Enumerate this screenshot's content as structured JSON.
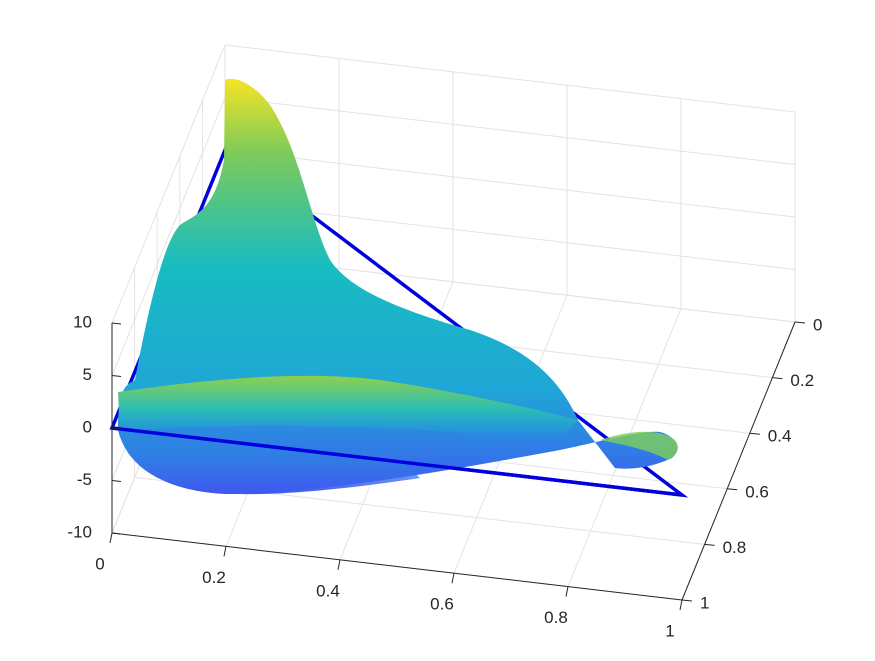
{
  "chart_data": {
    "type": "surface3d",
    "xlim": [
      0,
      1
    ],
    "xticks": [
      0,
      0.2,
      0.4,
      0.6,
      0.8,
      1
    ],
    "ylim": [
      0,
      1
    ],
    "yticks": [
      0,
      0.2,
      0.4,
      0.6,
      0.8,
      1
    ],
    "zlim": [
      -10,
      10
    ],
    "zticks": [
      -10,
      -5,
      0,
      5,
      10
    ],
    "grid": true,
    "triangle": {
      "color": "#0000dd",
      "x": [
        0,
        1,
        0
      ],
      "y": [
        1,
        1,
        0
      ],
      "z": [
        0,
        0,
        0
      ]
    }
  }
}
